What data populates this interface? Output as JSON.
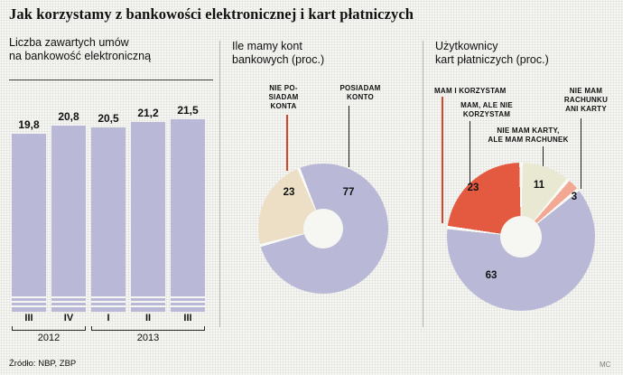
{
  "page": {
    "title": "Jak korzystamy z bankowości elektronicznej i kart płatniczych",
    "source": "Źródło: NBP, ZBP",
    "credit": "MC"
  },
  "colors": {
    "lavender": "#b9b9d7",
    "beige": "#ecdfc5",
    "red": "#e45a41",
    "cream": "#e9e9d3",
    "salmon": "#f3a893",
    "red_line": "#d2452e",
    "black_line": "#1a1a1a"
  },
  "bar_panel": {
    "title": [
      "Liczba zawartych umów",
      "na bankowość elektroniczną"
    ]
  },
  "accounts_panel": {
    "title": [
      "Ile mamy kont",
      "bankowych (proc.)"
    ],
    "callout_no": [
      "NIE PO-",
      "SIADAM",
      "KONTA"
    ],
    "callout_yes": [
      "POSIADAM",
      "KONTO"
    ]
  },
  "cards_panel": {
    "title": [
      "Użytkownicy",
      "kart płatniczych (proc.)"
    ],
    "callout_have_use": [
      "MAM I KORZYSTAM"
    ],
    "callout_have_not_use": [
      "MAM, ALE NIE",
      "KORZYSTAM"
    ],
    "callout_no_card": [
      "NIE MAM KARTY,",
      "ALE MAM RACHUNEK"
    ],
    "callout_no_account": [
      "NIE MAM",
      "RACHUNKU",
      "ANI KARTY"
    ]
  },
  "chart_data": [
    {
      "type": "bar",
      "title": "Liczba zawartych umów na bankowość elektroniczną",
      "categories": [
        "III",
        "IV",
        "I",
        "II",
        "III"
      ],
      "year_groups": [
        {
          "year": "2012",
          "span": 2
        },
        {
          "year": "2013",
          "span": 3
        }
      ],
      "values": [
        19.8,
        20.8,
        20.5,
        21.2,
        21.5
      ],
      "value_labels": [
        "19,8",
        "20,8",
        "20,5",
        "21,2",
        "21,5"
      ],
      "axis_break": true,
      "ylim": [
        0,
        22
      ]
    },
    {
      "type": "pie",
      "title": "Ile mamy kont bankowych (proc.)",
      "hole": true,
      "start_angle_deg": 337.8,
      "segments": [
        {
          "label": "POSIADAM KONTO",
          "value": 77,
          "color": "#b9b9d7"
        },
        {
          "label": "NIE POSIADAM KONTA",
          "value": 23,
          "color": "#ecdfc5"
        }
      ]
    },
    {
      "type": "pie",
      "title": "Użytkownicy kart płatniczych (proc.)",
      "hole": true,
      "start_angle_deg": 0,
      "segments": [
        {
          "label": "NIE MAM KARTY, ALE MAM RACHUNEK",
          "value": 11,
          "color": "#e9e9d3"
        },
        {
          "label": "NIE MAM RACHUNKU ANI KARTY",
          "value": 3,
          "color": "#f3a893"
        },
        {
          "label": "MAM I KORZYSTAM",
          "value": 63,
          "color": "#b9b9d7"
        },
        {
          "label": "MAM, ALE NIE KORZYSTAM",
          "value": 23,
          "color": "#e45a41"
        }
      ]
    }
  ]
}
